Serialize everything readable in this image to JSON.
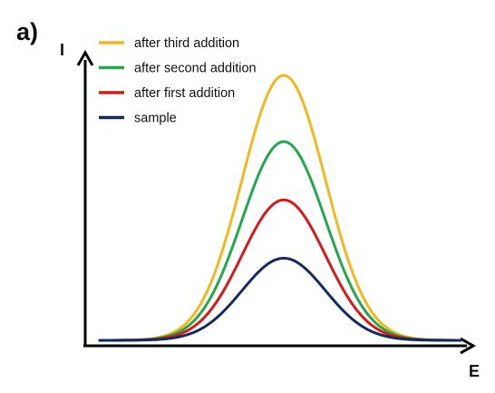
{
  "panel_label": "a)",
  "chart_data": {
    "type": "line",
    "title": "",
    "xlabel": "E",
    "ylabel": "I",
    "grid": false,
    "legend_position": "top-left",
    "x_range": [
      0,
      1
    ],
    "y_range": [
      0,
      1
    ],
    "x_ticks": [],
    "y_ticks": [],
    "curve_shape": "gaussian peak",
    "peak_x": 0.51,
    "series": [
      {
        "name": "after third addition",
        "color": "#F2B81E",
        "peak": 1.0
      },
      {
        "name": "after second addition",
        "color": "#23A84E",
        "peak": 0.75
      },
      {
        "name": "after first addition",
        "color": "#D7191C",
        "peak": 0.53
      },
      {
        "name": "sample",
        "color": "#132B5E",
        "peak": 0.31
      }
    ]
  }
}
